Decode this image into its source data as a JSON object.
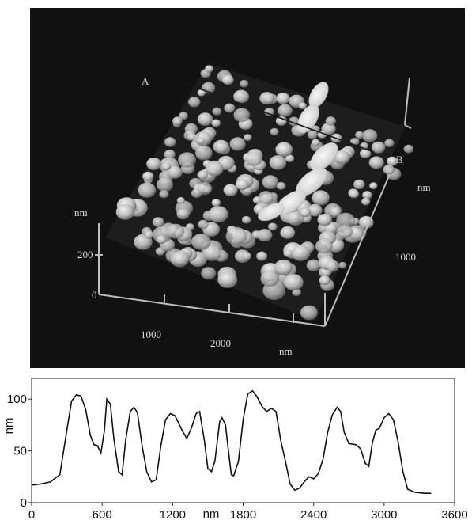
{
  "afm_image": {
    "point_a_label": "A",
    "point_b_label": "B",
    "z_unit_label": "nm",
    "z_tick_200": "200",
    "z_tick_0": "0",
    "x_tick_1000": "1000",
    "x_tick_2000": "2000",
    "x_unit_label": "nm",
    "y_unit_label": "nm",
    "y_tick_1000": "1000",
    "colors": {
      "background": "#111111",
      "surface": "#cfcfcf",
      "axes": "#bdbdbd"
    }
  },
  "chart_data": {
    "type": "line",
    "title": "",
    "xlabel": "nm",
    "ylabel": "nm",
    "xlim": [
      0,
      3600
    ],
    "ylim": [
      0,
      120
    ],
    "x_ticks": [
      0,
      600,
      1200,
      1800,
      2400,
      3000,
      3600
    ],
    "y_ticks": [
      0,
      50,
      100
    ],
    "grid": false,
    "series": [
      {
        "values": [
          [
            0,
            17
          ],
          [
            80,
            18
          ],
          [
            160,
            20
          ],
          [
            240,
            27
          ],
          [
            300,
            70
          ],
          [
            340,
            98
          ],
          [
            380,
            104
          ],
          [
            420,
            103
          ],
          [
            460,
            90
          ],
          [
            500,
            65
          ],
          [
            530,
            56
          ],
          [
            560,
            55
          ],
          [
            590,
            48
          ],
          [
            620,
            70
          ],
          [
            640,
            100
          ],
          [
            670,
            95
          ],
          [
            700,
            62
          ],
          [
            740,
            30
          ],
          [
            770,
            27
          ],
          [
            800,
            60
          ],
          [
            840,
            88
          ],
          [
            870,
            92
          ],
          [
            900,
            87
          ],
          [
            940,
            55
          ],
          [
            980,
            30
          ],
          [
            1020,
            20
          ],
          [
            1060,
            22
          ],
          [
            1100,
            55
          ],
          [
            1140,
            80
          ],
          [
            1180,
            86
          ],
          [
            1220,
            84
          ],
          [
            1280,
            70
          ],
          [
            1320,
            62
          ],
          [
            1360,
            72
          ],
          [
            1400,
            86
          ],
          [
            1430,
            88
          ],
          [
            1470,
            60
          ],
          [
            1500,
            33
          ],
          [
            1530,
            30
          ],
          [
            1560,
            40
          ],
          [
            1600,
            78
          ],
          [
            1620,
            82
          ],
          [
            1650,
            75
          ],
          [
            1680,
            45
          ],
          [
            1700,
            27
          ],
          [
            1720,
            26
          ],
          [
            1760,
            40
          ],
          [
            1800,
            80
          ],
          [
            1840,
            105
          ],
          [
            1880,
            108
          ],
          [
            1920,
            102
          ],
          [
            1960,
            93
          ],
          [
            2000,
            88
          ],
          [
            2040,
            91
          ],
          [
            2080,
            88
          ],
          [
            2120,
            60
          ],
          [
            2160,
            40
          ],
          [
            2200,
            18
          ],
          [
            2240,
            12
          ],
          [
            2280,
            14
          ],
          [
            2320,
            20
          ],
          [
            2360,
            25
          ],
          [
            2400,
            23
          ],
          [
            2440,
            28
          ],
          [
            2480,
            42
          ],
          [
            2520,
            68
          ],
          [
            2560,
            85
          ],
          [
            2600,
            92
          ],
          [
            2630,
            88
          ],
          [
            2660,
            68
          ],
          [
            2700,
            57
          ],
          [
            2760,
            56
          ],
          [
            2800,
            52
          ],
          [
            2840,
            38
          ],
          [
            2870,
            35
          ],
          [
            2900,
            58
          ],
          [
            2930,
            70
          ],
          [
            2960,
            72
          ],
          [
            3000,
            82
          ],
          [
            3040,
            86
          ],
          [
            3080,
            80
          ],
          [
            3120,
            58
          ],
          [
            3160,
            30
          ],
          [
            3200,
            13
          ],
          [
            3260,
            10
          ],
          [
            3340,
            9
          ],
          [
            3400,
            9
          ]
        ]
      }
    ]
  }
}
